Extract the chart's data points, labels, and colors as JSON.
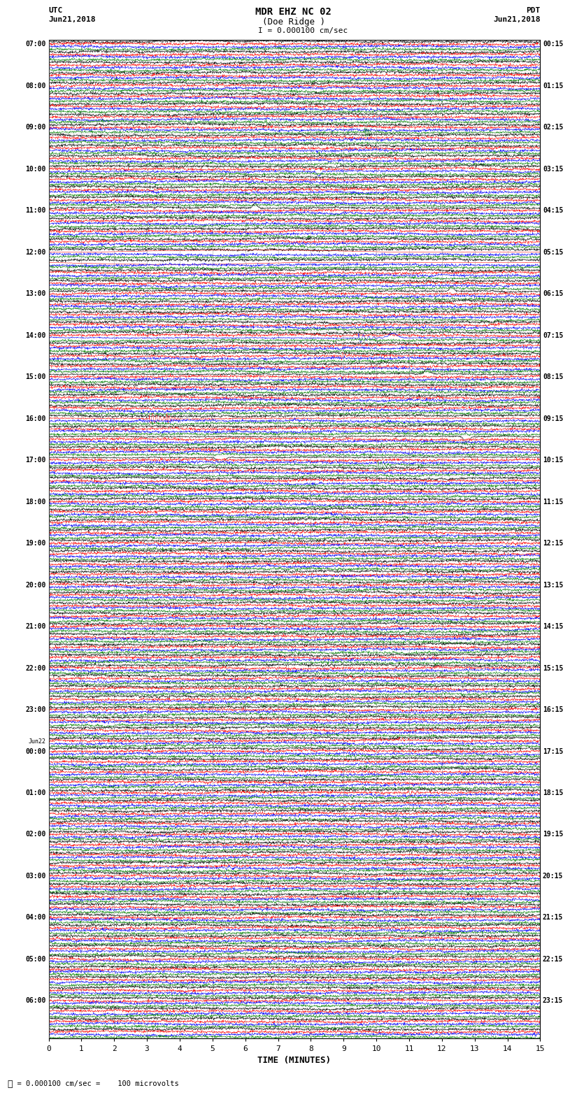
{
  "title_line1": "MDR EHZ NC 02",
  "title_line2": "(Doe Ridge )",
  "scale_text": "I = 0.000100 cm/sec",
  "bottom_scale_text": "  = 0.000100 cm/sec =    100 microvolts",
  "utc_label": "UTC",
  "utc_date": "Jun21,2018",
  "pdt_label": "PDT",
  "pdt_date": "Jun21,2018",
  "xlabel": "TIME (MINUTES)",
  "bg_color": "#ffffff",
  "colors": [
    "black",
    "red",
    "blue",
    "green"
  ],
  "utc_rows": [
    "07:00",
    "",
    "",
    "",
    "08:00",
    "",
    "",
    "",
    "09:00",
    "",
    "",
    "",
    "10:00",
    "",
    "",
    "",
    "11:00",
    "",
    "",
    "",
    "12:00",
    "",
    "",
    "",
    "13:00",
    "",
    "",
    "",
    "14:00",
    "",
    "",
    "",
    "15:00",
    "",
    "",
    "",
    "16:00",
    "",
    "",
    "",
    "17:00",
    "",
    "",
    "",
    "18:00",
    "",
    "",
    "",
    "19:00",
    "",
    "",
    "",
    "20:00",
    "",
    "",
    "",
    "21:00",
    "",
    "",
    "",
    "22:00",
    "",
    "",
    "",
    "23:00",
    "",
    "",
    "",
    "Jun22\n00:00",
    "",
    "",
    "",
    "01:00",
    "",
    "",
    "",
    "02:00",
    "",
    "",
    "",
    "03:00",
    "",
    "",
    "",
    "04:00",
    "",
    "",
    "",
    "05:00",
    "",
    "",
    "",
    "06:00",
    "",
    "",
    ""
  ],
  "pdt_rows": [
    "00:15",
    "",
    "",
    "",
    "01:15",
    "",
    "",
    "",
    "02:15",
    "",
    "",
    "",
    "03:15",
    "",
    "",
    "",
    "04:15",
    "",
    "",
    "",
    "05:15",
    "",
    "",
    "",
    "06:15",
    "",
    "",
    "",
    "07:15",
    "",
    "",
    "",
    "08:15",
    "",
    "",
    "",
    "09:15",
    "",
    "",
    "",
    "10:15",
    "",
    "",
    "",
    "11:15",
    "",
    "",
    "",
    "12:15",
    "",
    "",
    "",
    "13:15",
    "",
    "",
    "",
    "14:15",
    "",
    "",
    "",
    "15:15",
    "",
    "",
    "",
    "16:15",
    "",
    "",
    "",
    "17:15",
    "",
    "",
    "",
    "18:15",
    "",
    "",
    "",
    "19:15",
    "",
    "",
    "",
    "20:15",
    "",
    "",
    "",
    "21:15",
    "",
    "",
    "",
    "22:15",
    "",
    "",
    "",
    "23:15",
    "",
    "",
    ""
  ],
  "num_rows": 96,
  "samples_per_row": 1800
}
